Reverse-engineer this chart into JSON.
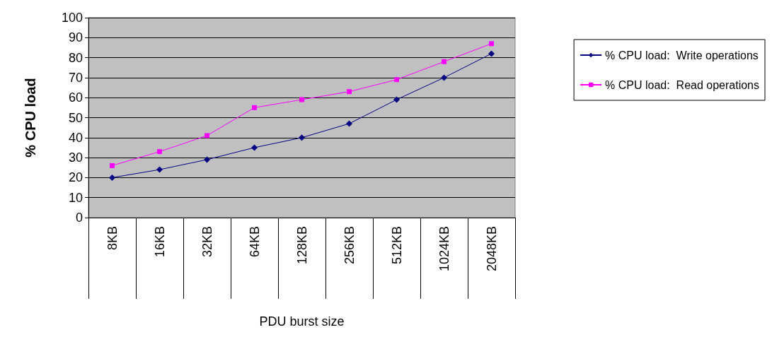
{
  "chart_data": {
    "type": "line",
    "xlabel": "PDU burst size",
    "ylabel": "% CPU load",
    "categories": [
      "8KB",
      "16KB",
      "32KB",
      "64KB",
      "128KB",
      "256KB",
      "512KB",
      "1024KB",
      "2048KB"
    ],
    "series": [
      {
        "name": "% CPU load:  Write operations",
        "color": "#000080",
        "marker": "diamond",
        "values": [
          20,
          24,
          29,
          35,
          40,
          47,
          59,
          70,
          82
        ]
      },
      {
        "name": "% CPU load:  Read operations",
        "color": "#ff00ff",
        "marker": "square",
        "values": [
          26,
          33,
          41,
          55,
          59,
          63,
          69,
          78,
          87
        ]
      }
    ],
    "ylim": [
      0,
      100
    ],
    "yticks": [
      0,
      10,
      20,
      30,
      40,
      50,
      60,
      70,
      80,
      90,
      100
    ],
    "grid": "y",
    "legend": "right"
  }
}
